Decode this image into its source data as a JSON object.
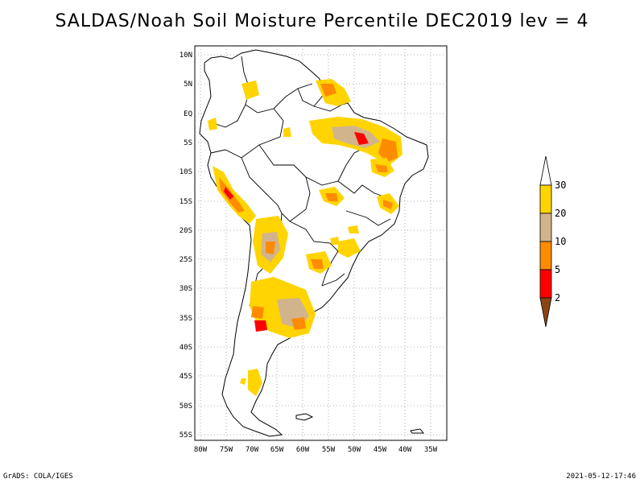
{
  "title": "SALDAS/Noah Soil Moisture Percentile DEC2019 lev = 4",
  "footer": {
    "left": "GrADS: COLA/IGES",
    "right": "2021-05-12-17:46"
  },
  "map": {
    "region": "South America",
    "lon_range": [
      -81,
      -32
    ],
    "lat_range": [
      -56,
      12
    ],
    "grid": "dotted",
    "lat_ticks": [
      "10N",
      "5N",
      "EQ",
      "5S",
      "10S",
      "15S",
      "20S",
      "25S",
      "30S",
      "35S",
      "40S",
      "45S",
      "50S",
      "55S"
    ],
    "lon_ticks": [
      "80W",
      "75W",
      "70W",
      "65W",
      "60W",
      "55W",
      "50W",
      "45W",
      "40W",
      "35W"
    ]
  },
  "legend": {
    "position": "right",
    "labels": [
      "30",
      "20",
      "10",
      "5",
      "2"
    ],
    "colors": {
      "above_30": "#ffffff",
      "20_30": "#ffd400",
      "10_20": "#d2b48c",
      "5_10": "#ff8c00",
      "2_5": "#ff0000",
      "below_2": "#8b4513"
    }
  }
}
